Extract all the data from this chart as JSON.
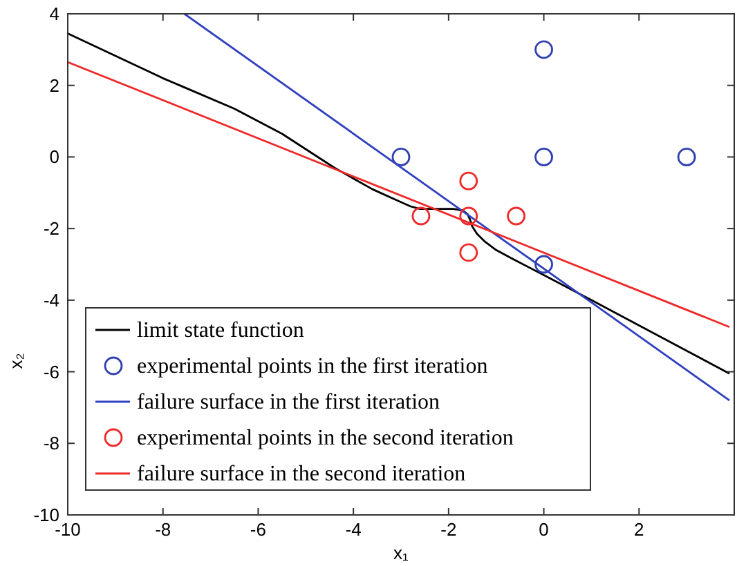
{
  "chart_data": {
    "type": "line",
    "xlabel": "x₁",
    "ylabel": "x₂",
    "xlim": [
      -10,
      4
    ],
    "ylim": [
      -10,
      4
    ],
    "xticks": [
      -10,
      -8,
      -6,
      -4,
      -2,
      0,
      2
    ],
    "yticks": [
      -10,
      -8,
      -6,
      -4,
      -2,
      0,
      2,
      4
    ],
    "grid": false,
    "legend": "bottom left",
    "marker": "none",
    "line_style": "solid",
    "series": [
      {
        "name": "limit state function",
        "type": "line",
        "color": "#000000",
        "x": [
          -10,
          -8,
          -6.5,
          -5.5,
          -4.4,
          -3.6,
          -3.1,
          -2.8,
          -2.6,
          -2.2,
          -1.9,
          -1.7,
          -1.6,
          -1.55,
          -1.5,
          -1.4,
          -1.25,
          -1,
          -0.65,
          0,
          1,
          3.9
        ],
        "values": [
          3.45,
          2.2,
          1.35,
          0.65,
          -0.3,
          -0.9,
          -1.2,
          -1.38,
          -1.45,
          -1.45,
          -1.45,
          -1.5,
          -1.6,
          -1.75,
          -1.95,
          -2.15,
          -2.35,
          -2.6,
          -2.85,
          -3.3,
          -4,
          -6.05
        ]
      },
      {
        "name": "experimental points in the first iteration",
        "type": "scatter",
        "marker": "circle",
        "color": "#3040b0",
        "x": [
          -3,
          0,
          0,
          3,
          0
        ],
        "values": [
          0,
          3,
          0,
          0,
          -3
        ]
      },
      {
        "name": "failure surface in the first iteration",
        "type": "line",
        "color": "#3040c0",
        "x": [
          -7.55,
          3.9
        ],
        "values": [
          4,
          -6.8
        ]
      },
      {
        "name": "experimental points in the second iteration",
        "type": "scatter",
        "marker": "circle",
        "color": "#ee2a2a",
        "x": [
          -1.58,
          -2.58,
          -1.58,
          -0.58,
          -1.58
        ],
        "values": [
          -0.67,
          -1.65,
          -1.65,
          -1.65,
          -2.67
        ]
      },
      {
        "name": "failure surface in the second iteration",
        "type": "line",
        "color": "#ee2a2a",
        "x": [
          -10,
          3.9
        ],
        "values": [
          2.65,
          -4.75
        ]
      }
    ]
  }
}
